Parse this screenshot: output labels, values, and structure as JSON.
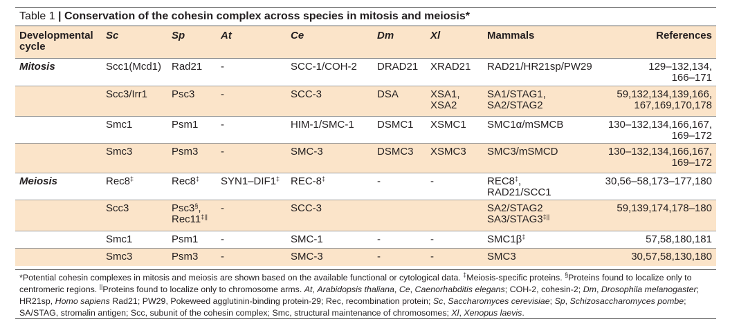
{
  "title": {
    "lead": "Table 1",
    "sep": "|",
    "text": "Conservation of the cohesin complex across species in mitosis and meiosis*"
  },
  "headers": {
    "cycle": "Developmental\ncycle",
    "sc": "Sc",
    "sp": "Sp",
    "at": "At",
    "ce": "Ce",
    "dm": "Dm",
    "xl": "Xl",
    "mammals": "Mammals",
    "refs": "References"
  },
  "rows": [
    {
      "cycle": "Mitosis",
      "sc": "Scc1(Mcd1)",
      "sp": "Rad21",
      "at": "-",
      "ce": "SCC-1/COH-2",
      "dm": "DRAD21",
      "xl": "XRAD21",
      "mammals": "RAD21/HR21sp/PW29",
      "refs": "129–132,134,\n166–171"
    },
    {
      "cycle": "",
      "sc": "Scc3/Irr1",
      "sp": "Psc3",
      "at": "-",
      "ce": "SCC-3",
      "dm": "DSA",
      "xl": "XSA1,\nXSA2",
      "mammals": "SA1/STAG1,\nSA2/STAG2",
      "refs": "59,132,134,139,166,\n167,169,170,178"
    },
    {
      "cycle": "",
      "sc": "Smc1",
      "sp": "Psm1",
      "at": "-",
      "ce": "HIM-1/SMC-1",
      "dm": "DSMC1",
      "xl": "XSMC1",
      "mammals": "SMC1α/mSMCB",
      "refs": "130–132,134,166,167,\n169–172"
    },
    {
      "cycle": "",
      "sc": "Smc3",
      "sp": "Psm3",
      "at": "-",
      "ce": "SMC-3",
      "dm": "DSMC3",
      "xl": "XSMC3",
      "mammals": "SMC3/mSMCD",
      "refs": "130–132,134,166,167,\n169–172"
    },
    {
      "cycle": "Meiosis",
      "sc": "Rec8",
      "sc_sup": "‡",
      "sp": "Rec8",
      "sp_sup": "‡",
      "at": "SYN1–DIF1",
      "at_sup": "‡",
      "ce": "REC-8",
      "ce_sup": "‡",
      "dm": "-",
      "xl": "-",
      "mammals": "REC8",
      "mammals_sup": "‡",
      "mammals_tail": ",",
      "mammals2": "RAD21/SCC1",
      "refs": "30,56–58,173–177,180"
    },
    {
      "cycle": "",
      "sc": "Scc3",
      "sp": "Psc3",
      "sp_sup": "§",
      "sp_tail": ",",
      "sp2": "Rec11",
      "sp2_sup": "‡||",
      "at": "-",
      "ce": "SCC-3",
      "dm": "",
      "xl": "",
      "mammals": "SA2/STAG2",
      "mammals2": "SA3/STAG3",
      "mammals2_sup": "‡||",
      "refs": "59,139,174,178–180"
    },
    {
      "cycle": "",
      "sc": "Smc1",
      "sp": "Psm1",
      "at": "-",
      "ce": "SMC-1",
      "dm": "-",
      "xl": "-",
      "mammals": "SMC1β",
      "mammals_sup": "‡",
      "refs": "57,58,180,181"
    },
    {
      "cycle": "",
      "sc": "Smc3",
      "sp": "Psm3",
      "at": "-",
      "ce": "SMC-3",
      "dm": "-",
      "xl": "-",
      "mammals": "SMC3",
      "refs": "30,57,58,130,180"
    }
  ],
  "footnote": {
    "p01": "*Potential cohesin complexes in mitosis and meiosis are shown based on the available functional or cytological data. ",
    "p02": "‡",
    "p03": "Meiosis-specific proteins. ",
    "p04": "§",
    "p05": "Proteins found to localize only to centromeric regions. ",
    "p06": "||",
    "p07": "Proteins found to localize only to chromosome arms. ",
    "p08": "At",
    "p09": ", ",
    "p10": "Arabidopsis thaliana",
    "p11": ", ",
    "p12": "Ce",
    "p13": ", ",
    "p14": "Caenorhabditis elegans",
    "p15": "; COH-2, cohesin-2; ",
    "p16": "Dm",
    "p17": ", ",
    "p18": "Drosophila melanogaster",
    "p19": "; HR21sp, ",
    "p20": "Homo sapiens",
    "p21": " Rad21; PW29, Pokeweed agglutinin-binding protein-29; Rec, recombination protein; ",
    "p22": "Sc",
    "p23": ", ",
    "p24": "Saccharomyces cerevisiae",
    "p25": "; ",
    "p26": "Sp",
    "p27": ", ",
    "p28": "Schizosaccharomyces pombe",
    "p29": "; SA/STAG, stromalin antigen; Scc, subunit of the cohesin complex; Smc, structural maintenance of chromosomes; ",
    "p30": "Xl",
    "p31": ", ",
    "p32": "Xenopus laevis",
    "p33": "."
  },
  "colors": {
    "shade": "#fbe4c9",
    "rule": "#555555",
    "text": "#231f20"
  }
}
